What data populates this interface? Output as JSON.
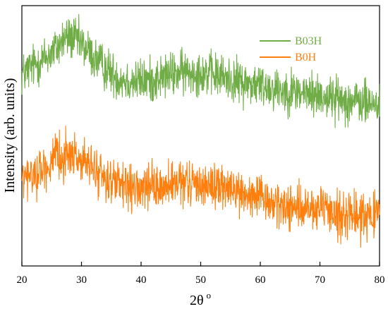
{
  "chart_data": {
    "type": "line",
    "xlabel": "2θ",
    "xlabel_superscript": "o",
    "ylabel": "Intensity (arb. units)",
    "xlim": [
      20,
      80
    ],
    "ylim": [
      0,
      100
    ],
    "x_ticks": [
      20,
      30,
      40,
      50,
      60,
      70,
      80
    ],
    "grid": false,
    "legend_position": "top-right",
    "series": [
      {
        "name": "B03H",
        "color": "#70AD47",
        "noise": 4.2,
        "x": [
          20,
          22,
          24,
          26,
          27,
          28,
          29,
          30,
          31,
          32,
          34,
          36,
          38,
          40,
          42,
          44,
          46,
          48,
          50,
          52,
          54,
          56,
          58,
          60,
          62,
          64,
          66,
          68,
          70,
          72,
          74,
          76,
          78,
          80
        ],
        "y": [
          73.5,
          77,
          80,
          84,
          87,
          88,
          87,
          85,
          83,
          80,
          76,
          72.5,
          71,
          71,
          71.5,
          73,
          74,
          74.5,
          74.5,
          73.5,
          72.5,
          71,
          70,
          69.5,
          68.5,
          67.5,
          67,
          66,
          65.5,
          64.5,
          64,
          63,
          62.5,
          62
        ]
      },
      {
        "name": "B0H",
        "color": "#FF7F0E",
        "noise": 4.2,
        "x": [
          20,
          22,
          24,
          26,
          27,
          28,
          29,
          30,
          31,
          32,
          34,
          36,
          38,
          40,
          42,
          44,
          46,
          48,
          50,
          52,
          54,
          56,
          58,
          60,
          62,
          64,
          66,
          68,
          70,
          72,
          74,
          76,
          78,
          80
        ],
        "y": [
          33,
          35,
          38,
          41,
          42.5,
          43,
          42,
          40.5,
          39,
          37,
          34,
          31,
          29,
          29.5,
          30,
          30.5,
          31,
          31.5,
          31.5,
          31,
          30,
          28.5,
          27,
          25.5,
          24,
          23,
          22.5,
          21.5,
          21,
          20.5,
          20,
          19.5,
          19.5,
          19
        ]
      }
    ]
  }
}
